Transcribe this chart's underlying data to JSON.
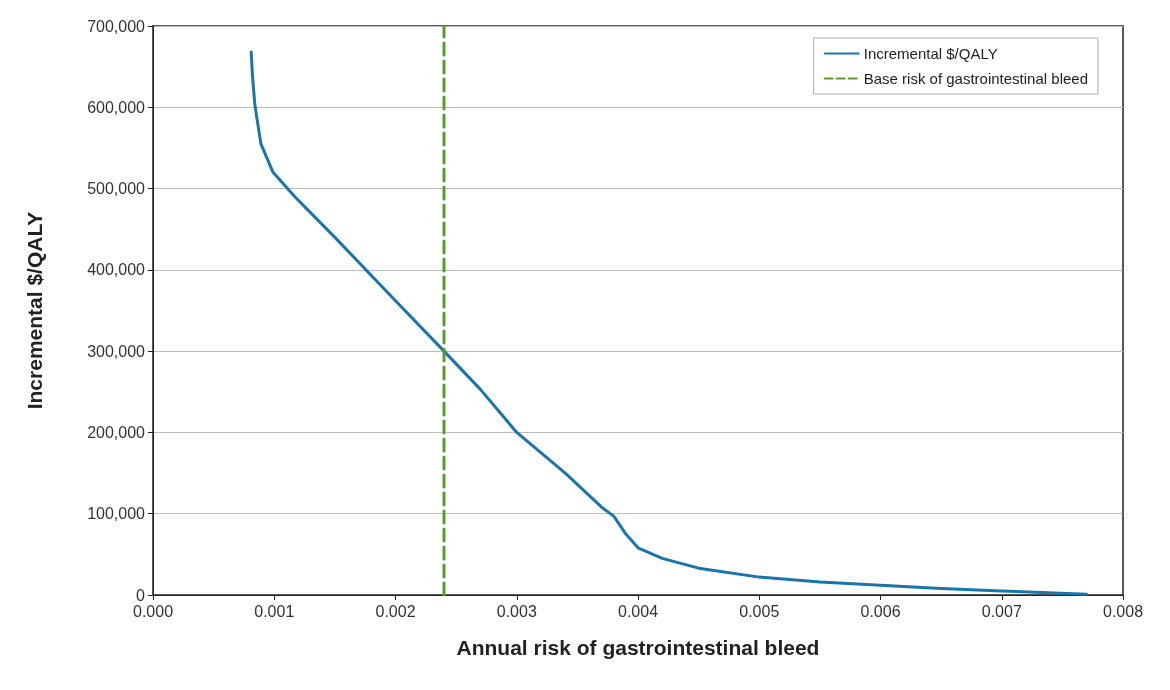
{
  "chart_data": {
    "type": "line",
    "xlabel": "Annual risk of gastrointestinal bleed",
    "ylabel": "Incremental $/QALY",
    "series": [
      {
        "name": "Incremental $/QALY",
        "color": "#1a75a8",
        "x": [
          0.00081,
          0.00082,
          0.00084,
          0.00089,
          0.00099,
          0.00117,
          0.0015,
          0.002,
          0.0024,
          0.0027,
          0.003,
          0.0034,
          0.0037,
          0.0038,
          0.0039,
          0.004,
          0.0042,
          0.0045,
          0.005,
          0.0055,
          0.006,
          0.0065,
          0.007,
          0.0077
        ],
        "values": [
          668000,
          640000,
          603000,
          555000,
          520000,
          490000,
          440000,
          362000,
          300000,
          253000,
          200000,
          150000,
          108000,
          97000,
          75000,
          58000,
          45000,
          33000,
          22000,
          16000,
          12000,
          8000,
          5000,
          1000
        ]
      },
      {
        "name": "Base risk of gastrointestinal bleed",
        "color": "#5a9a32",
        "line_style": "dashed",
        "x": [
          0.0024,
          0.0024
        ],
        "values": [
          0,
          700000
        ]
      }
    ],
    "xlim": [
      0,
      0.008
    ],
    "xticks": [
      {
        "value": 0,
        "label": "0.000"
      },
      {
        "value": 0.001,
        "label": "0.001"
      },
      {
        "value": 0.002,
        "label": "0.002"
      },
      {
        "value": 0.003,
        "label": "0.003"
      },
      {
        "value": 0.004,
        "label": "0.004"
      },
      {
        "value": 0.005,
        "label": "0.005"
      },
      {
        "value": 0.006,
        "label": "0.006"
      },
      {
        "value": 0.007,
        "label": "0.007"
      },
      {
        "value": 0.008,
        "label": "0.008"
      }
    ],
    "ylim": [
      0,
      700000
    ],
    "yticks": [
      0,
      {
        "value": 100000,
        "label": "100,000"
      },
      {
        "value": 200000,
        "label": "200,000"
      },
      {
        "value": 300000,
        "label": "300,000"
      },
      {
        "value": 400000,
        "label": "400,000"
      },
      {
        "value": 500000,
        "label": "500,000"
      },
      {
        "value": 600000,
        "label": "600,000"
      },
      {
        "value": 700000,
        "label": "700,000"
      }
    ],
    "grid": "y",
    "legend": "top right",
    "marker": "none",
    "line_style": "solid"
  }
}
